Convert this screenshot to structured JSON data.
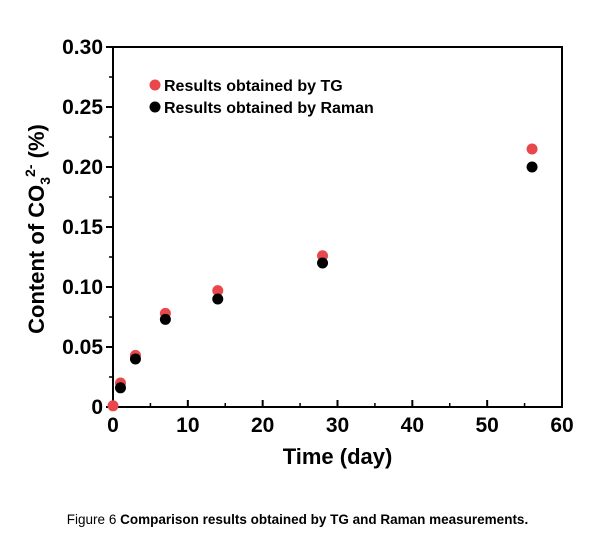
{
  "chart_data": {
    "type": "scatter",
    "xlabel": "Time (day)",
    "ylabel": {
      "prefix": "Content of CO",
      "subscript": "3",
      "superscript": "2-",
      "suffix": " (%)"
    },
    "xlim": [
      0,
      60
    ],
    "ylim": [
      0,
      0.3
    ],
    "x_ticks": [
      0,
      10,
      20,
      30,
      40,
      50,
      60
    ],
    "x_tick_labels": [
      "0",
      "10",
      "20",
      "30",
      "40",
      "50",
      "60"
    ],
    "y_ticks": [
      0,
      0.05,
      0.1,
      0.15,
      0.2,
      0.25,
      0.3
    ],
    "y_tick_labels": [
      "0",
      "0.05",
      "0.10",
      "0.15",
      "0.20",
      "0.25",
      "0.30"
    ],
    "grid": false,
    "legend_position": "top-left",
    "series": [
      {
        "name": "Results obtained by TG",
        "color": "#e8474c",
        "points": [
          {
            "x": 0,
            "y": 0.001
          },
          {
            "x": 1,
            "y": 0.02
          },
          {
            "x": 3,
            "y": 0.043
          },
          {
            "x": 7,
            "y": 0.078
          },
          {
            "x": 14,
            "y": 0.097
          },
          {
            "x": 28,
            "y": 0.126
          },
          {
            "x": 56,
            "y": 0.215
          }
        ]
      },
      {
        "name": "Results obtained by Raman",
        "color": "#000000",
        "points": [
          {
            "x": 1,
            "y": 0.016
          },
          {
            "x": 3,
            "y": 0.04
          },
          {
            "x": 7,
            "y": 0.073
          },
          {
            "x": 14,
            "y": 0.09
          },
          {
            "x": 28,
            "y": 0.12
          },
          {
            "x": 56,
            "y": 0.2
          }
        ]
      }
    ]
  },
  "caption": {
    "label": "Figure 6",
    "title": "Comparison results obtained by TG and Raman measurements."
  }
}
